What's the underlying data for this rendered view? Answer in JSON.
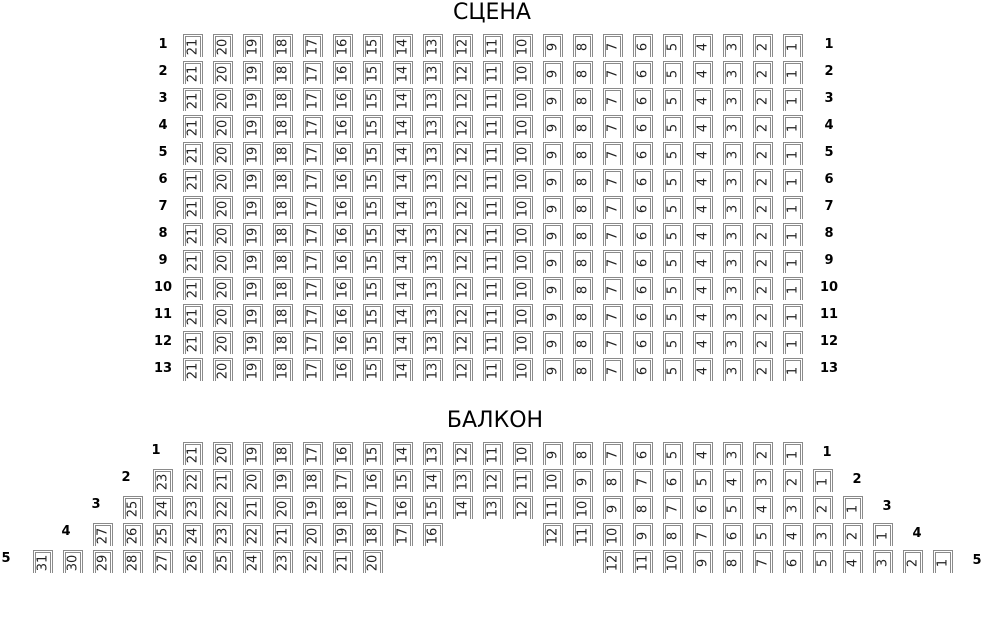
{
  "stage": {
    "title": "СЦЕНА",
    "rows": [
      {
        "label": "1",
        "segments": [
          [
            21,
            20,
            19,
            18,
            17,
            16,
            15,
            14,
            13,
            12,
            11,
            10,
            9,
            8,
            7,
            6,
            5,
            4,
            3,
            2,
            1
          ]
        ]
      },
      {
        "label": "2",
        "segments": [
          [
            21,
            20,
            19,
            18,
            17,
            16,
            15,
            14,
            13,
            12,
            11,
            10,
            9,
            8,
            7,
            6,
            5,
            4,
            3,
            2,
            1
          ]
        ]
      },
      {
        "label": "3",
        "segments": [
          [
            21,
            20,
            19,
            18,
            17,
            16,
            15,
            14,
            13,
            12,
            11,
            10,
            9,
            8,
            7,
            6,
            5,
            4,
            3,
            2,
            1
          ]
        ]
      },
      {
        "label": "4",
        "segments": [
          [
            21,
            20,
            19,
            18,
            17,
            16,
            15,
            14,
            13,
            12,
            11,
            10,
            9,
            8,
            7,
            6,
            5,
            4,
            3,
            2,
            1
          ]
        ]
      },
      {
        "label": "5",
        "segments": [
          [
            21,
            20,
            19,
            18,
            17,
            16,
            15,
            14,
            13,
            12,
            11,
            10,
            9,
            8,
            7,
            6,
            5,
            4,
            3,
            2,
            1
          ]
        ]
      },
      {
        "label": "6",
        "segments": [
          [
            21,
            20,
            19,
            18,
            17,
            16,
            15,
            14,
            13,
            12,
            11,
            10,
            9,
            8,
            7,
            6,
            5,
            4,
            3,
            2,
            1
          ]
        ]
      },
      {
        "label": "7",
        "segments": [
          [
            21,
            20,
            19,
            18,
            17,
            16,
            15,
            14,
            13,
            12,
            11,
            10,
            9,
            8,
            7,
            6,
            5,
            4,
            3,
            2,
            1
          ]
        ]
      },
      {
        "label": "8",
        "segments": [
          [
            21,
            20,
            19,
            18,
            17,
            16,
            15,
            14,
            13,
            12,
            11,
            10,
            9,
            8,
            7,
            6,
            5,
            4,
            3,
            2,
            1
          ]
        ]
      },
      {
        "label": "9",
        "segments": [
          [
            21,
            20,
            19,
            18,
            17,
            16,
            15,
            14,
            13,
            12,
            11,
            10,
            9,
            8,
            7,
            6,
            5,
            4,
            3,
            2,
            1
          ]
        ]
      },
      {
        "label": "10",
        "segments": [
          [
            21,
            20,
            19,
            18,
            17,
            16,
            15,
            14,
            13,
            12,
            11,
            10,
            9,
            8,
            7,
            6,
            5,
            4,
            3,
            2,
            1
          ]
        ]
      },
      {
        "label": "11",
        "segments": [
          [
            21,
            20,
            19,
            18,
            17,
            16,
            15,
            14,
            13,
            12,
            11,
            10,
            9,
            8,
            7,
            6,
            5,
            4,
            3,
            2,
            1
          ]
        ]
      },
      {
        "label": "12",
        "segments": [
          [
            21,
            20,
            19,
            18,
            17,
            16,
            15,
            14,
            13,
            12,
            11,
            10,
            9,
            8,
            7,
            6,
            5,
            4,
            3,
            2,
            1
          ]
        ]
      },
      {
        "label": "13",
        "segments": [
          [
            21,
            20,
            19,
            18,
            17,
            16,
            15,
            14,
            13,
            12,
            11,
            10,
            9,
            8,
            7,
            6,
            5,
            4,
            3,
            2,
            1
          ]
        ]
      }
    ]
  },
  "balcony": {
    "title": "БАЛКОН",
    "rows": [
      {
        "label": "1",
        "segments": [
          [
            21,
            20,
            19,
            18,
            17,
            16,
            15,
            14,
            13,
            12,
            11,
            10,
            9,
            8,
            7,
            6,
            5,
            4,
            3,
            2,
            1
          ]
        ]
      },
      {
        "label": "2",
        "segments": [
          [
            23,
            22,
            21,
            20,
            19,
            18,
            17,
            16,
            15,
            14,
            13,
            12,
            11,
            10,
            9,
            8,
            7,
            6,
            5,
            4,
            3,
            2,
            1
          ]
        ]
      },
      {
        "label": "3",
        "segments": [
          [
            25,
            24,
            23,
            22,
            21,
            20,
            19,
            18,
            17,
            16,
            15,
            14,
            13,
            12,
            11,
            10,
            9,
            8,
            7,
            6,
            5,
            4,
            3,
            2,
            1
          ]
        ]
      },
      {
        "label": "4",
        "segments": [
          [
            27,
            26,
            25,
            24,
            23,
            22,
            21,
            20,
            19,
            18,
            17,
            16
          ],
          [
            12,
            11,
            10,
            9,
            8,
            7,
            6,
            5,
            4,
            3,
            2,
            1
          ]
        ]
      },
      {
        "label": "5",
        "segments": [
          [
            31,
            30,
            29,
            28,
            27,
            26,
            25,
            24,
            23,
            22,
            21,
            20
          ],
          [
            12,
            11,
            10,
            9,
            8,
            7,
            6,
            5,
            4,
            3,
            2,
            1
          ]
        ]
      }
    ]
  }
}
